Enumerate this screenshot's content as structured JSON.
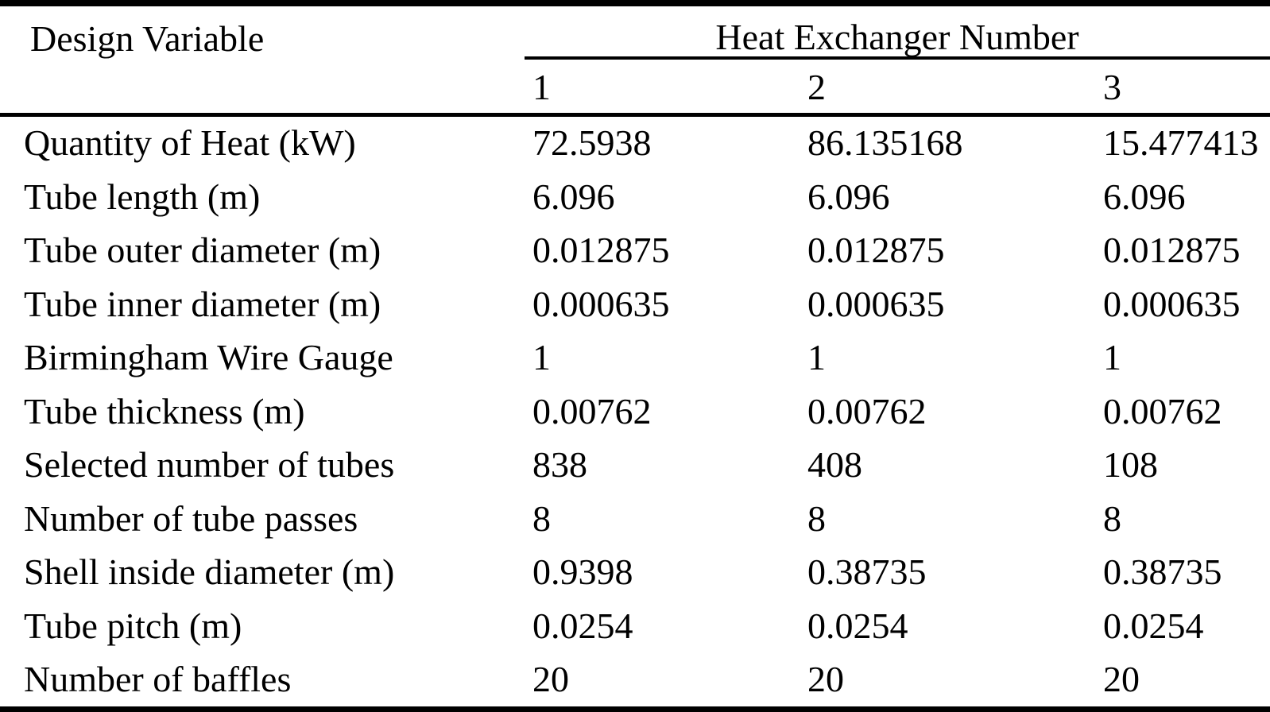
{
  "table": {
    "header": {
      "design_variable": "Design Variable",
      "group_header": "Heat Exchanger Number",
      "columns": [
        "1",
        "2",
        "3"
      ]
    },
    "rows": [
      {
        "label": "Quantity of Heat (kW)",
        "values": [
          "72.5938",
          "86.135168",
          "15.477413"
        ]
      },
      {
        "label": "Tube length (m)",
        "values": [
          "6.096",
          "6.096",
          "6.096"
        ]
      },
      {
        "label": "Tube outer diameter (m)",
        "values": [
          "0.012875",
          "0.012875",
          "0.012875"
        ]
      },
      {
        "label": "Tube inner diameter (m)",
        "values": [
          "0.000635",
          "0.000635",
          "0.000635"
        ]
      },
      {
        "label": "Birmingham Wire Gauge",
        "values": [
          "1",
          "1",
          "1"
        ]
      },
      {
        "label": "Tube thickness (m)",
        "values": [
          "0.00762",
          "0.00762",
          "0.00762"
        ]
      },
      {
        "label": "Selected number of tubes",
        "values": [
          "838",
          "408",
          "108"
        ]
      },
      {
        "label": "Number of tube passes",
        "values": [
          "8",
          "8",
          "8"
        ]
      },
      {
        "label": "Shell inside diameter (m)",
        "values": [
          "0.9398",
          "0.38735",
          "0.38735"
        ]
      },
      {
        "label": "Tube pitch (m)",
        "values": [
          "0.0254",
          "0.0254",
          "0.0254"
        ]
      },
      {
        "label": "Number of baffles",
        "values": [
          "20",
          "20",
          "20"
        ]
      }
    ],
    "colors": {
      "text": "#000000",
      "background": "#ffffff",
      "rule": "#000000"
    }
  }
}
